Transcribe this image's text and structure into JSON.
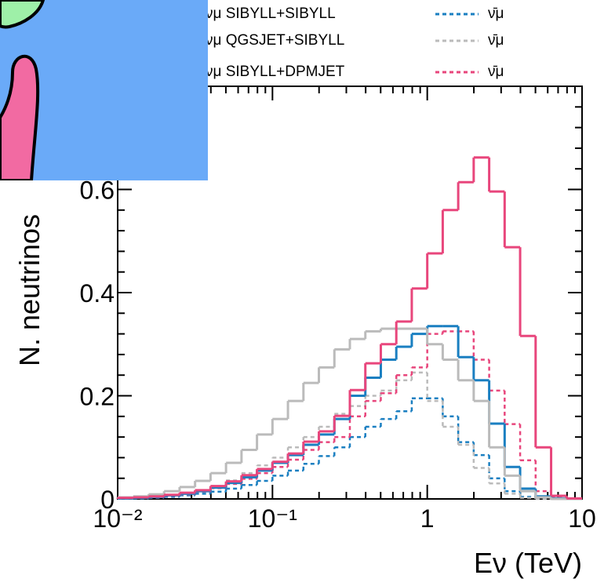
{
  "chart_data": {
    "type": "histogram",
    "xlabel": "Eν (TeV)",
    "ylabel": "N. neutrinos",
    "xscale": "log",
    "xlim": [
      0.01,
      10
    ],
    "ylim": [
      0,
      0.8
    ],
    "xticks": [
      {
        "value": 0.01,
        "label": "10⁻²"
      },
      {
        "value": 0.1,
        "label": "10⁻¹"
      },
      1,
      10
    ],
    "yticks": [
      0,
      0.2,
      0.4,
      0.6
    ],
    "bins": [
      0.01,
      0.01259,
      0.01585,
      0.01995,
      0.02512,
      0.03162,
      0.03981,
      0.05012,
      0.0631,
      0.07943,
      0.1,
      0.1259,
      0.1585,
      0.1995,
      0.2512,
      0.3162,
      0.3981,
      0.5012,
      0.631,
      0.7943,
      1,
      1.259,
      1.585,
      1.995,
      2.512,
      3.162,
      3.981,
      5.012,
      6.31,
      7.943,
      10
    ],
    "series": [
      {
        "name": "νμ SIBYLL+SIBYLL",
        "color": "#1a7fc1",
        "linestyle": "solid",
        "values": [
          0.001,
          0.002,
          0.004,
          0.007,
          0.01,
          0.015,
          0.022,
          0.031,
          0.042,
          0.055,
          0.07,
          0.085,
          0.105,
          0.125,
          0.155,
          0.2,
          0.235,
          0.27,
          0.295,
          0.32,
          0.335,
          0.335,
          0.275,
          0.23,
          0.146,
          0.062,
          0.02,
          0.005,
          0.001,
          0
        ]
      },
      {
        "name": "νμ QGSJET+SIBYLL",
        "color": "#bbbbbb",
        "linestyle": "solid",
        "values": [
          0.003,
          0.005,
          0.009,
          0.015,
          0.023,
          0.035,
          0.05,
          0.07,
          0.095,
          0.125,
          0.155,
          0.19,
          0.225,
          0.255,
          0.29,
          0.31,
          0.325,
          0.33,
          0.33,
          0.33,
          0.3,
          0.27,
          0.23,
          0.19,
          0.1,
          0.045,
          0.015,
          0.003,
          0,
          0
        ]
      },
      {
        "name": "νμ SIBYLL+DPMJET",
        "color": "#e8467c",
        "linestyle": "solid",
        "values": [
          0.002,
          0.003,
          0.005,
          0.008,
          0.012,
          0.017,
          0.025,
          0.034,
          0.046,
          0.058,
          0.072,
          0.088,
          0.111,
          0.131,
          0.161,
          0.211,
          0.263,
          0.3,
          0.344,
          0.408,
          0.476,
          0.56,
          0.614,
          0.662,
          0.596,
          0.488,
          0.316,
          0.1,
          0.006,
          0.001
        ]
      },
      {
        "name": "ν̄μ",
        "color": "#1a7fc1",
        "linestyle": "dashed",
        "values": [
          0.001,
          0.001,
          0.002,
          0.004,
          0.007,
          0.01,
          0.014,
          0.02,
          0.027,
          0.035,
          0.045,
          0.055,
          0.068,
          0.083,
          0.1,
          0.12,
          0.14,
          0.155,
          0.17,
          0.195,
          0.195,
          0.16,
          0.11,
          0.085,
          0.04,
          0.015,
          0.004,
          0.001,
          0,
          0
        ]
      },
      {
        "name": "ν̄μ",
        "color": "#bbbbbb",
        "linestyle": "dashed",
        "values": [
          0.001,
          0.002,
          0.004,
          0.007,
          0.011,
          0.017,
          0.025,
          0.036,
          0.05,
          0.065,
          0.08,
          0.1,
          0.12,
          0.14,
          0.165,
          0.18,
          0.2,
          0.21,
          0.23,
          0.245,
          0.19,
          0.14,
          0.105,
          0.06,
          0.03,
          0.01,
          0.002,
          0,
          0,
          0
        ]
      },
      {
        "name": "ν̄μ",
        "color": "#e8467c",
        "linestyle": "dashed",
        "values": [
          0.001,
          0.002,
          0.003,
          0.006,
          0.009,
          0.014,
          0.021,
          0.029,
          0.039,
          0.05,
          0.062,
          0.076,
          0.095,
          0.11,
          0.12,
          0.16,
          0.19,
          0.205,
          0.24,
          0.255,
          0.32,
          0.325,
          0.325,
          0.27,
          0.21,
          0.145,
          0.075,
          0.015,
          0.003,
          0
        ]
      }
    ]
  }
}
